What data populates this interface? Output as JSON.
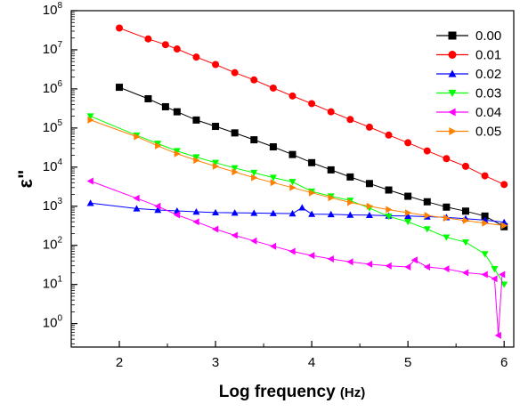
{
  "chart_data": {
    "type": "scatter",
    "title": "",
    "xlabel": "Log frequency",
    "xlabel_unit": "(Hz)",
    "ylabel": "ε\"",
    "xlim": [
      1.5,
      6.1
    ],
    "ylim_log10": [
      -0.6,
      8
    ],
    "y_scale": "log",
    "x_ticks": [
      "2",
      "3",
      "4",
      "5",
      "6"
    ],
    "y_ticks": [
      {
        "base": "10",
        "exp": "0"
      },
      {
        "base": "10",
        "exp": "1"
      },
      {
        "base": "10",
        "exp": "2"
      },
      {
        "base": "10",
        "exp": "3"
      },
      {
        "base": "10",
        "exp": "4"
      },
      {
        "base": "10",
        "exp": "5"
      },
      {
        "base": "10",
        "exp": "6"
      },
      {
        "base": "10",
        "exp": "7"
      },
      {
        "base": "10",
        "exp": "8"
      }
    ],
    "legend_position": "top-right",
    "series": [
      {
        "name": "0.00",
        "color": "#000000",
        "marker": "square",
        "points": [
          [
            2.0,
            1100000.0
          ],
          [
            2.3,
            560000.0
          ],
          [
            2.48,
            350000.0
          ],
          [
            2.6,
            260000.0
          ],
          [
            2.8,
            160000.0
          ],
          [
            3.0,
            110000.0
          ],
          [
            3.2,
            75000.0
          ],
          [
            3.4,
            50000.0
          ],
          [
            3.6,
            33000.0
          ],
          [
            3.8,
            21000.0
          ],
          [
            4.0,
            13000.0
          ],
          [
            4.2,
            8500.0
          ],
          [
            4.4,
            5600.0
          ],
          [
            4.6,
            3800.0
          ],
          [
            4.8,
            2600.0
          ],
          [
            5.0,
            1800.0
          ],
          [
            5.2,
            1300.0
          ],
          [
            5.4,
            950
          ],
          [
            5.6,
            750
          ],
          [
            5.8,
            560
          ],
          [
            6.0,
            300
          ]
        ]
      },
      {
        "name": "0.01",
        "color": "#ff0000",
        "marker": "circle",
        "points": [
          [
            2.0,
            36000000.0
          ],
          [
            2.3,
            19000000.0
          ],
          [
            2.48,
            13500000.0
          ],
          [
            2.6,
            10500000.0
          ],
          [
            2.8,
            6500000.0
          ],
          [
            3.0,
            4200000.0
          ],
          [
            3.2,
            2600000.0
          ],
          [
            3.4,
            1700000.0
          ],
          [
            3.6,
            1050000.0
          ],
          [
            3.8,
            660000.0
          ],
          [
            4.0,
            420000.0
          ],
          [
            4.2,
            260000.0
          ],
          [
            4.4,
            165000.0
          ],
          [
            4.6,
            105000.0
          ],
          [
            4.8,
            66000.0
          ],
          [
            5.0,
            42000.0
          ],
          [
            5.2,
            26000.0
          ],
          [
            5.4,
            16500.0
          ],
          [
            5.6,
            10500.0
          ],
          [
            5.8,
            6000.0
          ],
          [
            6.0,
            3600.0
          ]
        ]
      },
      {
        "name": "0.02",
        "color": "#0000ff",
        "marker": "triangle-up",
        "points": [
          [
            1.7,
            1200.0
          ],
          [
            2.18,
            870
          ],
          [
            2.4,
            800
          ],
          [
            2.6,
            760
          ],
          [
            2.8,
            720
          ],
          [
            3.0,
            690
          ],
          [
            3.2,
            680
          ],
          [
            3.4,
            670
          ],
          [
            3.6,
            660
          ],
          [
            3.8,
            650
          ],
          [
            3.9,
            920
          ],
          [
            4.0,
            630
          ],
          [
            4.2,
            620
          ],
          [
            4.4,
            600
          ],
          [
            4.6,
            590
          ],
          [
            4.8,
            570
          ],
          [
            5.0,
            560
          ],
          [
            5.2,
            540
          ],
          [
            5.4,
            520
          ],
          [
            5.6,
            480
          ],
          [
            5.8,
            440
          ],
          [
            6.0,
            390
          ]
        ]
      },
      {
        "name": "0.03",
        "color": "#00ff00",
        "marker": "triangle-down",
        "points": [
          [
            1.7,
            200000.0
          ],
          [
            2.18,
            65000.0
          ],
          [
            2.4,
            40000.0
          ],
          [
            2.6,
            26000.0
          ],
          [
            2.8,
            18000.0
          ],
          [
            3.0,
            13000.0
          ],
          [
            3.2,
            9500.0
          ],
          [
            3.4,
            7200.0
          ],
          [
            3.6,
            5400.0
          ],
          [
            3.8,
            4200.0
          ],
          [
            4.0,
            2400.0
          ],
          [
            4.2,
            1800.0
          ],
          [
            4.4,
            1400.0
          ],
          [
            4.6,
            900
          ],
          [
            4.8,
            550
          ],
          [
            5.0,
            400
          ],
          [
            5.2,
            260
          ],
          [
            5.4,
            160
          ],
          [
            5.6,
            120
          ],
          [
            5.8,
            60
          ],
          [
            5.9,
            25
          ],
          [
            6.0,
            10
          ]
        ]
      },
      {
        "name": "0.04",
        "color": "#ff00ff",
        "marker": "triangle-left",
        "points": [
          [
            1.7,
            4400.0
          ],
          [
            2.18,
            1600.0
          ],
          [
            2.4,
            1000.0
          ],
          [
            2.6,
            600
          ],
          [
            2.8,
            400
          ],
          [
            3.0,
            260
          ],
          [
            3.2,
            180
          ],
          [
            3.4,
            130
          ],
          [
            3.6,
            95
          ],
          [
            3.8,
            70
          ],
          [
            4.0,
            55
          ],
          [
            4.2,
            45
          ],
          [
            4.4,
            38
          ],
          [
            4.6,
            33
          ],
          [
            4.8,
            30
          ],
          [
            5.0,
            28
          ],
          [
            5.07,
            42
          ],
          [
            5.2,
            28
          ],
          [
            5.4,
            25
          ],
          [
            5.6,
            20
          ],
          [
            5.8,
            18
          ],
          [
            5.9,
            14
          ],
          [
            5.94,
            0.5
          ],
          [
            5.98,
            18
          ]
        ]
      },
      {
        "name": "0.05",
        "color": "#ff8000",
        "marker": "triangle-right",
        "points": [
          [
            1.7,
            160000.0
          ],
          [
            2.18,
            60000.0
          ],
          [
            2.4,
            35000.0
          ],
          [
            2.6,
            22000.0
          ],
          [
            2.8,
            15000.0
          ],
          [
            3.0,
            10500.0
          ],
          [
            3.2,
            7500.0
          ],
          [
            3.4,
            5400.0
          ],
          [
            3.6,
            4000.0
          ],
          [
            3.8,
            3000.0
          ],
          [
            4.0,
            2200.0
          ],
          [
            4.2,
            1650.0
          ],
          [
            4.4,
            1250.0
          ],
          [
            4.6,
            1000.0
          ],
          [
            4.8,
            820
          ],
          [
            5.0,
            680
          ],
          [
            5.2,
            580
          ],
          [
            5.4,
            500
          ],
          [
            5.6,
            430
          ],
          [
            5.8,
            370
          ],
          [
            6.0,
            320
          ]
        ]
      }
    ]
  }
}
